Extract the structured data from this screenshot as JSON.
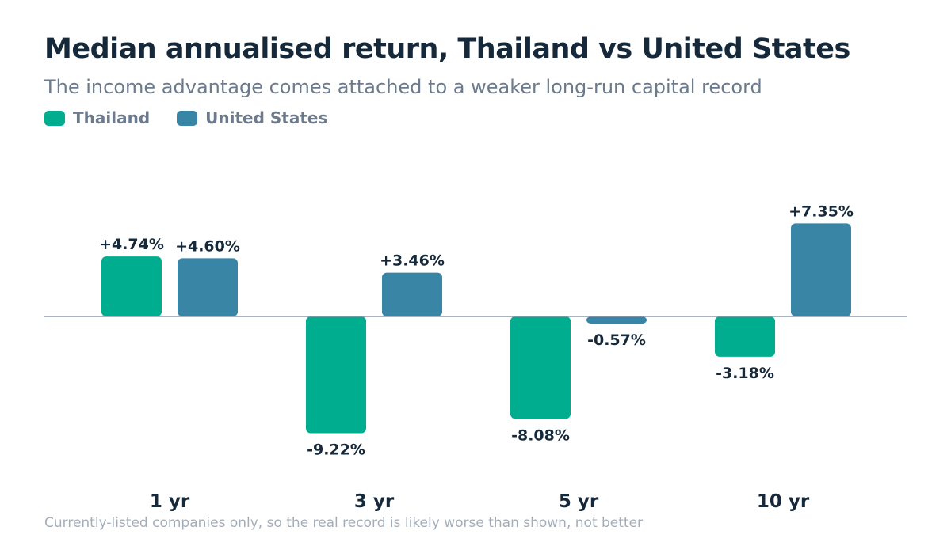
{
  "chart_data": {
    "type": "bar",
    "title": "Median annualised return, Thailand vs United States",
    "subtitle": "The income advantage comes attached to a weaker long-run capital record",
    "categories": [
      "1 yr",
      "3 yr",
      "5 yr",
      "10 yr"
    ],
    "series": [
      {
        "name": "Thailand",
        "color": "#00ae8f",
        "values": [
          4.74,
          -9.22,
          -8.08,
          -3.18
        ],
        "labels": [
          "+4.74%",
          "-9.22%",
          "-8.08%",
          "-3.18%"
        ]
      },
      {
        "name": "United States",
        "color": "#3985a6",
        "values": [
          4.6,
          3.46,
          -0.57,
          7.35
        ],
        "labels": [
          "+4.60%",
          "+3.46%",
          "-0.57%",
          "+7.35%"
        ]
      }
    ],
    "ylim": [
      -10.5,
      9
    ],
    "grid": false,
    "legend_position": "top-left",
    "footnote": "Currently-listed companies only, so the real record is likely worse than shown, not better"
  }
}
